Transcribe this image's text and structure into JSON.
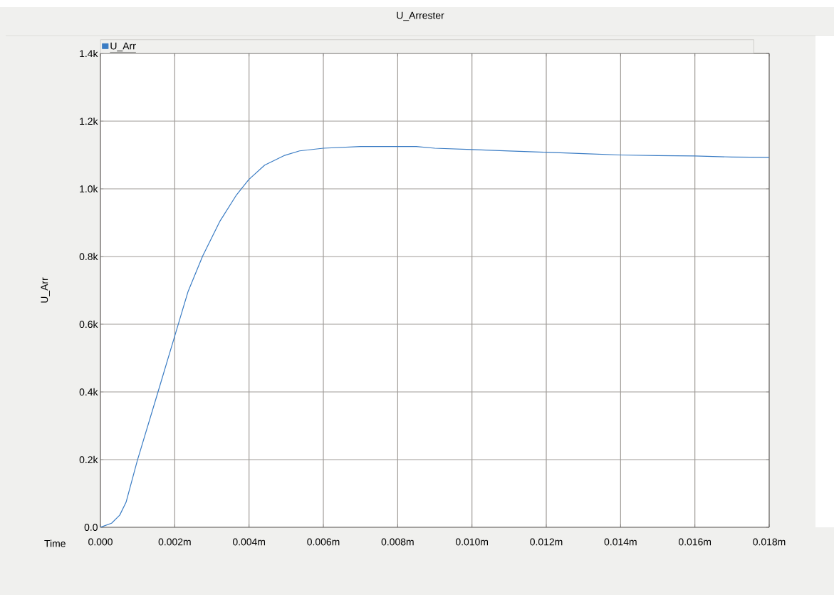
{
  "chart_data": {
    "type": "line",
    "title": "U_Arrester",
    "xlabel": "Time",
    "ylabel": "U_Arr",
    "x": [
      0,
      0.0003,
      0.00052,
      0.00069,
      0.00099,
      0.00155,
      0.002,
      0.00236,
      0.00275,
      0.00322,
      0.00365,
      0.00399,
      0.00442,
      0.00494,
      0.00536,
      0.006,
      0.007,
      0.0085,
      0.009,
      0.01,
      0.011,
      0.012,
      0.013,
      0.014,
      0.015,
      0.016,
      0.017,
      0.018
    ],
    "series": [
      {
        "name": "U_Arr",
        "color": "#3a7cc4",
        "values": [
          0,
          12,
          36,
          74,
          196,
          400,
          565,
          697,
          801,
          905,
          980,
          1027,
          1070,
          1098,
          1112,
          1120,
          1125,
          1125,
          1120,
          1116,
          1112,
          1108,
          1104,
          1100,
          1098,
          1097,
          1094,
          1093
        ]
      }
    ],
    "xlim": [
      0,
      0.018
    ],
    "xticks": [
      {
        "value": 0,
        "label": "0.000"
      },
      {
        "value": 0.002,
        "label": "0.002m"
      },
      {
        "value": 0.004,
        "label": "0.004m"
      },
      {
        "value": 0.006,
        "label": "0.006m"
      },
      {
        "value": 0.008,
        "label": "0.008m"
      },
      {
        "value": 0.01,
        "label": "0.010m"
      },
      {
        "value": 0.012,
        "label": "0.012m"
      },
      {
        "value": 0.014,
        "label": "0.014m"
      },
      {
        "value": 0.016,
        "label": "0.016m"
      },
      {
        "value": 0.018,
        "label": "0.018m"
      }
    ],
    "ylim": [
      0,
      1400
    ],
    "yticks": [
      {
        "value": 0,
        "label": "0.0"
      },
      {
        "value": 200,
        "label": "0.2k"
      },
      {
        "value": 400,
        "label": "0.4k"
      },
      {
        "value": 600,
        "label": "0.6k"
      },
      {
        "value": 800,
        "label": "0.8k"
      },
      {
        "value": 1000,
        "label": "1.0k"
      },
      {
        "value": 1200,
        "label": "1.2k"
      },
      {
        "value": 1400,
        "label": "1.4k"
      }
    ],
    "grid": true,
    "legend": "top left",
    "marker": "none",
    "line_style": "solid"
  }
}
